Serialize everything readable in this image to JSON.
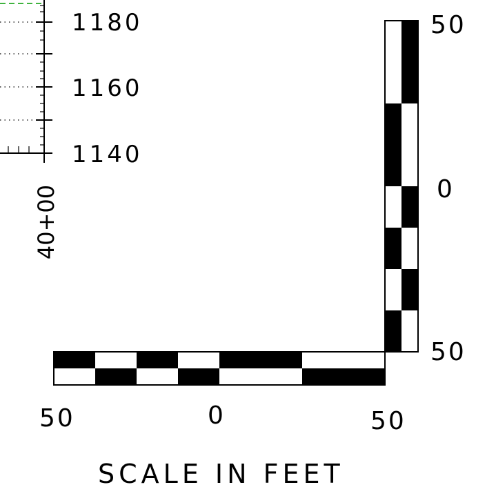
{
  "profile": {
    "elevations": [
      "1180",
      "1160",
      "1140"
    ],
    "station": "40+00",
    "guide_color": "#009a00"
  },
  "scale_bar": {
    "horizontal_labels": {
      "left": "50",
      "center": "0",
      "right": "50"
    },
    "vertical_labels": {
      "top": "50",
      "middle": "0",
      "bottom": "50"
    },
    "caption": "SCALE IN FEET"
  }
}
